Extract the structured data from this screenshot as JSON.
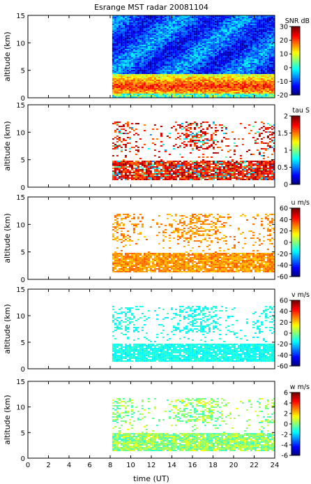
{
  "title": "Esrange MST radar 20081104",
  "xlabel": "time (UT)",
  "ylabel": "altitude (km)",
  "x_ticks": [
    0,
    2,
    4,
    6,
    8,
    10,
    12,
    14,
    16,
    18,
    20,
    22,
    24
  ],
  "y_ticks": [
    0,
    5,
    10,
    15
  ],
  "chart_data": [
    {
      "type": "heatmap",
      "quantity": "SNR",
      "colorbar_label": "SNR dB",
      "colorbar_range": [
        -20,
        30
      ],
      "colorbar_ticks": [
        -20,
        -10,
        0,
        10,
        20,
        30
      ],
      "xlim": [
        0,
        24
      ],
      "ylim": [
        0,
        15
      ],
      "data_start_time": 8.2,
      "colormap": "jet",
      "description_values": {
        "low_altitude_layer_km": [
          1,
          4
        ],
        "low_altitude_snr_db": 22,
        "background_snr_db": -12
      }
    },
    {
      "type": "heatmap",
      "quantity": "tau",
      "colorbar_label": "tau S",
      "colorbar_range": [
        0,
        2
      ],
      "colorbar_ticks": [
        0,
        0.5,
        1,
        1.5,
        2
      ],
      "xlim": [
        0,
        24
      ],
      "ylim": [
        0,
        15
      ],
      "data_start_time": 8.2,
      "colormap": "jet",
      "description_values": {
        "main_layer_km": [
          1.5,
          5
        ],
        "upper_layer_km": [
          7,
          12
        ],
        "typical_tau_s": 1.9
      }
    },
    {
      "type": "heatmap",
      "quantity": "u",
      "colorbar_label": "u m/s",
      "colorbar_range": [
        -60,
        60
      ],
      "colorbar_ticks": [
        -60,
        -40,
        -20,
        0,
        20,
        40,
        60
      ],
      "xlim": [
        0,
        24
      ],
      "ylim": [
        0,
        15
      ],
      "data_start_time": 8.2,
      "colormap": "jet",
      "description_values": {
        "main_layer_km": [
          1.5,
          5
        ],
        "upper_layer_km": [
          7,
          12
        ],
        "typical_u_ms": 25
      }
    },
    {
      "type": "heatmap",
      "quantity": "v",
      "colorbar_label": "v m/s",
      "colorbar_range": [
        -60,
        60
      ],
      "colorbar_ticks": [
        -60,
        -40,
        -20,
        0,
        20,
        40,
        60
      ],
      "xlim": [
        0,
        24
      ],
      "ylim": [
        0,
        15
      ],
      "data_start_time": 8.2,
      "colormap": "jet",
      "description_values": {
        "main_layer_km": [
          1.5,
          5
        ],
        "upper_layer_km": [
          7,
          12
        ],
        "typical_v_ms": -12
      }
    },
    {
      "type": "heatmap",
      "quantity": "w",
      "colorbar_label": "w m/s",
      "colorbar_range": [
        -6,
        6
      ],
      "colorbar_ticks": [
        -6,
        -4,
        -2,
        0,
        2,
        4,
        6
      ],
      "xlim": [
        0,
        24
      ],
      "ylim": [
        0,
        15
      ],
      "data_start_time": 8.2,
      "colormap": "jet",
      "description_values": {
        "main_layer_km": [
          1.5,
          5
        ],
        "upper_layer_km": [
          7,
          12
        ],
        "typical_w_ms": 0.3
      }
    }
  ]
}
